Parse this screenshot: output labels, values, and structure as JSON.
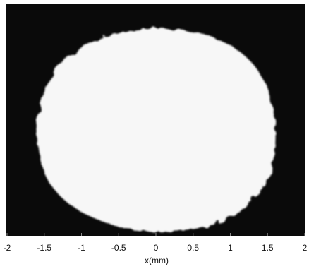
{
  "chart_data": {
    "type": "image",
    "x_label": "x(mm)",
    "xlim": [
      -2,
      2
    ],
    "xticks": [
      -2,
      -1.5,
      -1,
      -0.5,
      0,
      0.5,
      1,
      1.5,
      2
    ]
  }
}
